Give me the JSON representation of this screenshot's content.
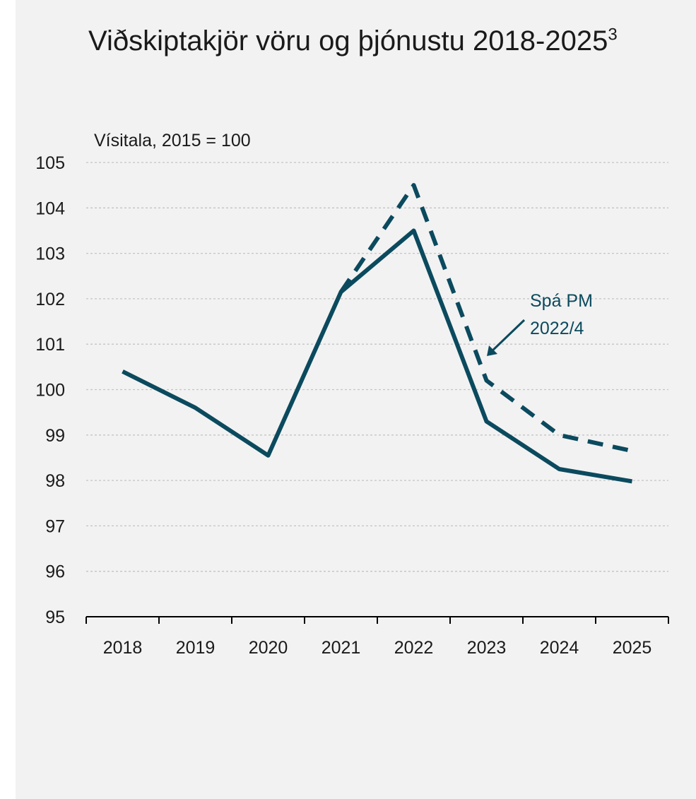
{
  "chart_data": {
    "type": "line",
    "title": "Viðskiptakjör vöru og þjónustu 2018-2025",
    "title_superscript": "3",
    "subtitle": "Vísitala, 2015 = 100",
    "categories": [
      "2018",
      "2019",
      "2020",
      "2021",
      "2022",
      "2023",
      "2024",
      "2025"
    ],
    "ylim": [
      95,
      105
    ],
    "yticks": [
      "95",
      "96",
      "97",
      "98",
      "99",
      "100",
      "101",
      "102",
      "103",
      "104",
      "105"
    ],
    "grid": true,
    "series": [
      {
        "name": "",
        "style": "solid",
        "color": "#0b4a5e",
        "values": [
          100.4,
          99.6,
          98.55,
          102.15,
          103.5,
          99.3,
          98.25,
          97.98
        ]
      },
      {
        "name": "Spá PM 2022/4",
        "style": "dashed",
        "color": "#0b4a5e",
        "values": [
          null,
          null,
          null,
          102.15,
          104.5,
          100.2,
          99.0,
          98.65
        ]
      }
    ],
    "annotation": {
      "lines": [
        "Spá PM",
        "2022/4"
      ],
      "color": "#0b4a5e",
      "points_to_series": "Spá PM 2022/4"
    }
  }
}
